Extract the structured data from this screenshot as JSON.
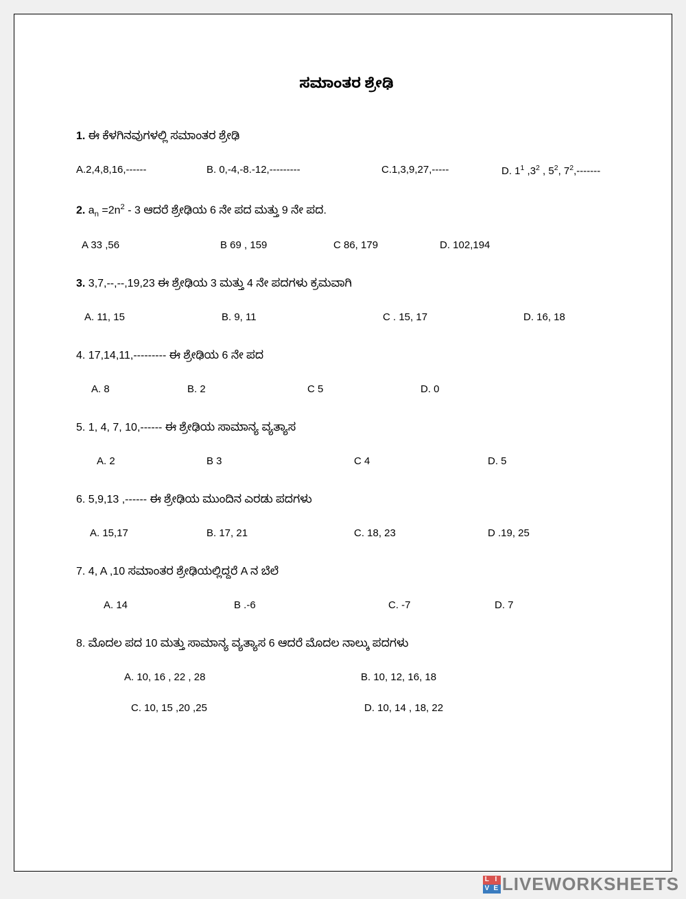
{
  "title": "ಸಮಾಂತರ ಶ್ರೇಢಿ",
  "q1": {
    "num": "1.",
    "text": "ಈ  ಕೆಳಗಿನವುಗಳಲ್ಲಿ ಸಮಾಂತರ ಶ್ರೇಢಿ",
    "a": "A.2,4,8,16,------",
    "b": "B. 0,-4,-8.-12,---------",
    "c": "C.1,3,9,27,-----",
    "d_pre": "D.  1",
    "d_sup1": "1",
    "d_mid1": " ,3",
    "d_sup2": "2",
    "d_mid2": " , 5",
    "d_sup3": "2",
    "d_mid3": ", 7",
    "d_sup4": "2",
    "d_tail": ",-------"
  },
  "q2": {
    "num": "2.",
    "pre": " a",
    "sub": "n",
    "mid": " =2n",
    "sup": "2",
    "tail": " - 3  ಆದರೆ  ಶ್ರೇಢಿಯ 6 ನೇ ಪದ ಮತ್ತು 9 ನೇ ಪದ.",
    "a": "A   33 ,56",
    "b": "B   69 , 159",
    "c": "C  86, 179",
    "d": "D.  102,194"
  },
  "q3": {
    "num": "3.",
    "text": " 3,7,--,--,19,23 ಈ ಶ್ರೇಢಿಯ 3 ಮತ್ತು 4 ನೇ ಪದಗಳು ಕ್ರಮವಾಗಿ",
    "a": "A.  11, 15",
    "b": "B.  9, 11",
    "c": "C .   15, 17",
    "d": "D.  16, 18"
  },
  "q4": {
    "text": "4. 17,14,11,--------- ಈ ಶ್ರೇಢಿಯ 6 ನೇ ಪದ",
    "a": "A.  8",
    "b": "B.  2",
    "c": "C  5",
    "d": "D.  0"
  },
  "q5": {
    "text": "5. 1, 4, 7, 10,------ ಈ ಶ್ರೇಢಿಯ ಸಾಮಾನ್ಯ ವ್ಯತ್ಯಾಸ",
    "a": "A. 2",
    "b": "B 3",
    "c": "C 4",
    "d": "D. 5"
  },
  "q6": {
    "text": "6.  5,9,13 ,------ ಈ ಶ್ರೇಢಿಯ ಮುಂದಿನ ಎರಡು ಪದಗಳು",
    "a": "A. 15,17",
    "b": "B. 17, 21",
    "c": "C. 18,  23",
    "d": "D .19, 25"
  },
  "q7": {
    "text": "7. 4, A ,10 ಸಮಾಂತರ ಶ್ರೇಢಿಯಲ್ಲಿದ್ದರೆ A ನ ಬೆಲೆ",
    "a": "A.  14",
    "b": "B .-6",
    "c": "C. -7",
    "d": "D. 7"
  },
  "q8": {
    "text": "8. ಮೊದಲ ಪದ 10 ಮತ್ತು ಸಾಮಾನ್ಯ ವ್ಯತ್ಯಾಸ 6 ಆದರೆ ಮೊದಲ ನಾಲ್ಕು ಪದಗಳು",
    "a": "A. 10, 16 ,  22 , 28",
    "b": "B. 10, 12, 16, 18",
    "c": "C.  10, 15 ,20 ,25",
    "d": "D.  10, 14 , 18, 22"
  },
  "watermark": {
    "text": "LIVEWORKSHEETS",
    "badge": {
      "tl": "L",
      "tr": "I",
      "bl": "V",
      "br": "E"
    }
  }
}
